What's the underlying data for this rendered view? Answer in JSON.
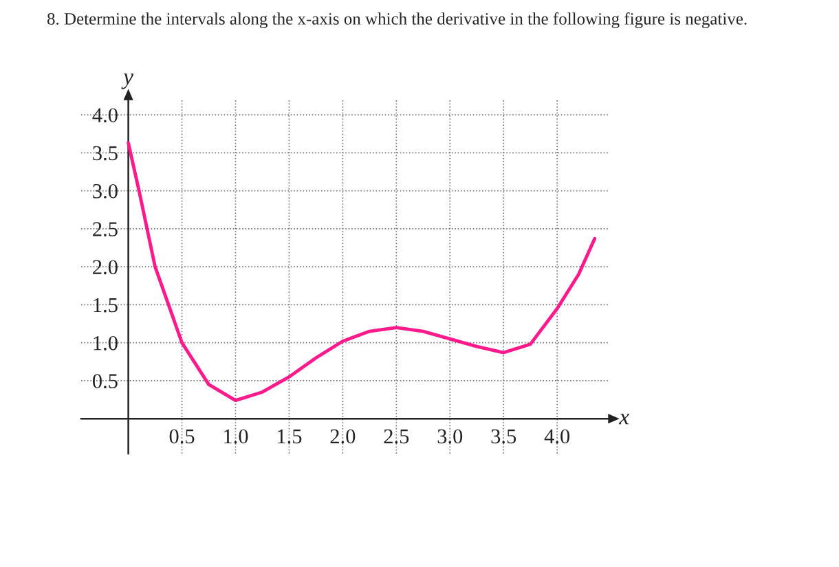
{
  "chart_data": {
    "type": "line",
    "title": "8. Determine the intervals along the x-axis on which the derivative in the following figure is negative.",
    "xlabel": "x",
    "ylabel": "y",
    "x": [
      0,
      0.1,
      0.25,
      0.5,
      0.75,
      1.0,
      1.25,
      1.5,
      1.75,
      2.0,
      2.25,
      2.5,
      2.75,
      3.0,
      3.25,
      3.5,
      3.75,
      4.0,
      4.2,
      4.35
    ],
    "series": [
      {
        "color": "#ff1a8c",
        "values": [
          3.63,
          3.0,
          2.0,
          1.0,
          0.45,
          0.24,
          0.35,
          0.55,
          0.8,
          1.02,
          1.15,
          1.2,
          1.15,
          1.05,
          0.95,
          0.87,
          0.98,
          1.45,
          1.9,
          2.37
        ]
      }
    ],
    "xlim": [
      -0.44,
      4.48
    ],
    "ylim": [
      -0.46,
      4.2
    ],
    "xticks": [
      0.5,
      {
        "value": 1,
        "label": "1.0"
      },
      1.5,
      {
        "value": 2,
        "label": "2.0"
      },
      2.5,
      {
        "value": 3,
        "label": "3.0"
      },
      3.5,
      {
        "value": 4,
        "label": "4.0"
      }
    ],
    "yticks": [
      0.5,
      {
        "value": 1,
        "label": "1.0"
      },
      1.5,
      {
        "value": 2,
        "label": "2.0"
      },
      2.5,
      {
        "value": 3,
        "label": "3.0"
      },
      3.5,
      {
        "value": 4,
        "label": "4.0"
      }
    ],
    "grid": true,
    "line_style": "solid",
    "marker": "none"
  }
}
